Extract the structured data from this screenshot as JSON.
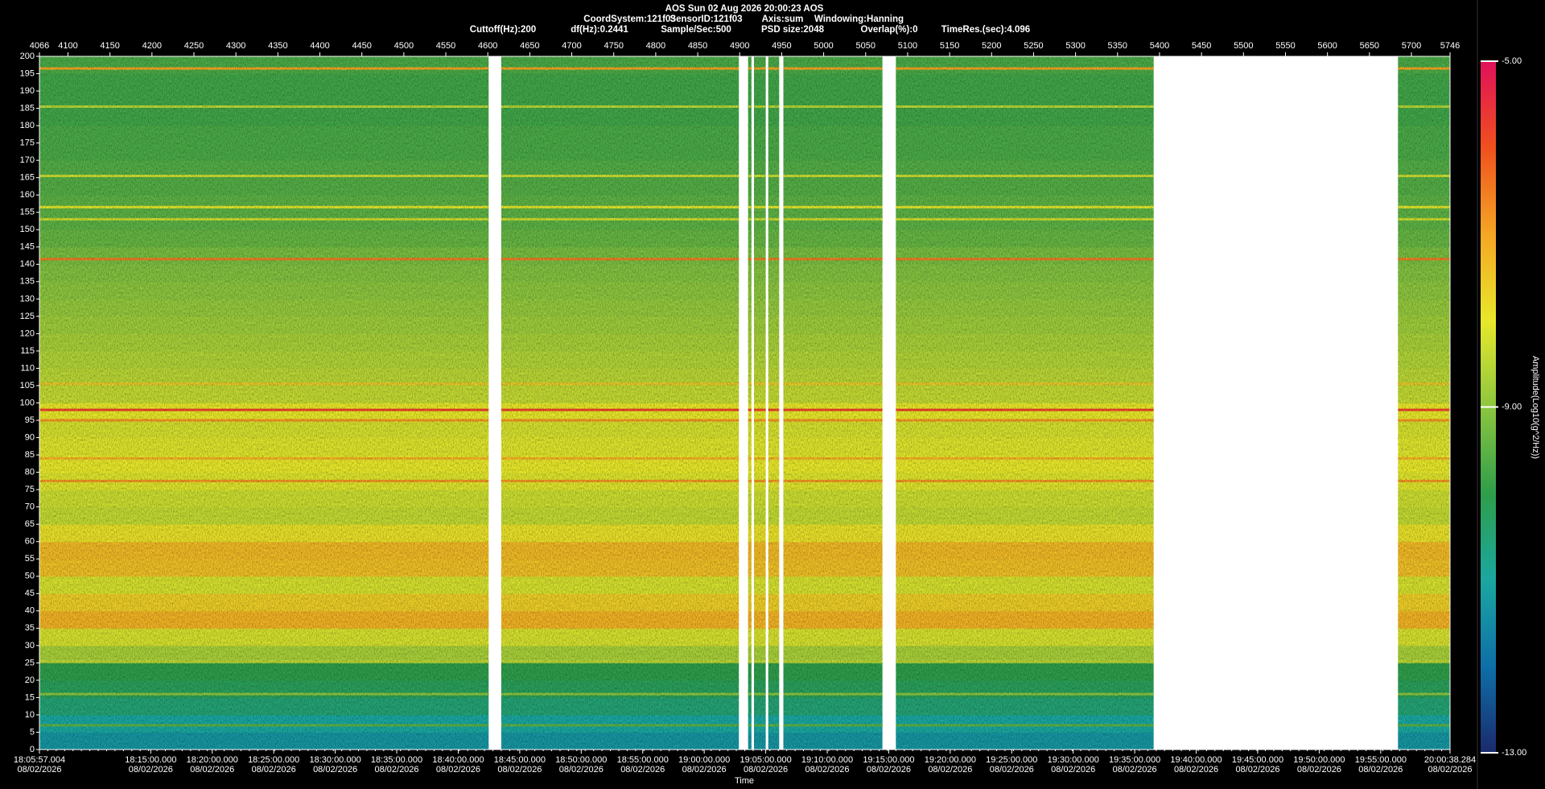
{
  "chart_data": {
    "type": "spectrogram",
    "title": "AOS  Sun 02 Aug 2026 20:00:23  AOS",
    "subtitle": [
      "CoordSystem:121f03",
      "SensorID:121f03",
      "Axis:sum",
      "Windowing:Hanning"
    ],
    "parameters": [
      "Cuttoff(Hz):200",
      "df(Hz):0.2441",
      "Sample/Sec:500",
      "PSD size:2048",
      "Overlap(%):0",
      "TimeRes.(sec):4.096"
    ],
    "xlabel": "Time",
    "colorbar_label": "Amplitude(Log10(g^2/Hz))",
    "xlim": [
      4066,
      5746
    ],
    "xticks": [
      4066,
      4100,
      4150,
      4200,
      4250,
      4300,
      4350,
      4400,
      4450,
      4500,
      4550,
      4600,
      4650,
      4700,
      4750,
      4800,
      4850,
      4900,
      4950,
      5000,
      5050,
      5100,
      5150,
      5200,
      5250,
      5300,
      5350,
      5400,
      5450,
      5500,
      5550,
      5600,
      5650,
      5700,
      5746
    ],
    "time_ticks": [
      {
        "value": 4066,
        "label": "18:05:57.004",
        "date": "08/02/2026"
      },
      {
        "value": 4198.57,
        "label": "18:15:00.000",
        "date": "08/02/2026"
      },
      {
        "value": 4271.82,
        "label": "18:20:00.000",
        "date": "08/02/2026"
      },
      {
        "value": 4345.06,
        "label": "18:25:00.000",
        "date": "08/02/2026"
      },
      {
        "value": 4418.3,
        "label": "18:30:00.000",
        "date": "08/02/2026"
      },
      {
        "value": 4491.54,
        "label": "18:35:00.000",
        "date": "08/02/2026"
      },
      {
        "value": 4564.79,
        "label": "18:40:00.000",
        "date": "08/02/2026"
      },
      {
        "value": 4638.03,
        "label": "18:45:00.000",
        "date": "08/02/2026"
      },
      {
        "value": 4711.27,
        "label": "18:50:00.000",
        "date": "08/02/2026"
      },
      {
        "value": 4784.51,
        "label": "18:55:00.000",
        "date": "08/02/2026"
      },
      {
        "value": 4857.75,
        "label": "19:00:00.000",
        "date": "08/02/2026"
      },
      {
        "value": 4931.0,
        "label": "19:05:00.000",
        "date": "08/02/2026"
      },
      {
        "value": 5004.24,
        "label": "19:10:00.000",
        "date": "08/02/2026"
      },
      {
        "value": 5077.48,
        "label": "19:15:00.000",
        "date": "08/02/2026"
      },
      {
        "value": 5150.72,
        "label": "19:20:00.000",
        "date": "08/02/2026"
      },
      {
        "value": 5223.97,
        "label": "19:25:00.000",
        "date": "08/02/2026"
      },
      {
        "value": 5297.21,
        "label": "19:30:00.000",
        "date": "08/02/2026"
      },
      {
        "value": 5370.45,
        "label": "19:35:00.000",
        "date": "08/02/2026"
      },
      {
        "value": 5443.69,
        "label": "19:40:00.000",
        "date": "08/02/2026"
      },
      {
        "value": 5516.93,
        "label": "19:45:00.000",
        "date": "08/02/2026"
      },
      {
        "value": 5590.18,
        "label": "19:50:00.000",
        "date": "08/02/2026"
      },
      {
        "value": 5663.42,
        "label": "19:55:00.000",
        "date": "08/02/2026"
      },
      {
        "value": 5746,
        "label": "20:00:38.284",
        "date": "08/02/2026"
      }
    ],
    "ylim": [
      0,
      200
    ],
    "yticks": [
      0,
      5,
      10,
      15,
      20,
      25,
      30,
      35,
      40,
      45,
      50,
      55,
      60,
      65,
      70,
      75,
      80,
      85,
      90,
      95,
      100,
      105,
      110,
      115,
      120,
      125,
      130,
      135,
      140,
      145,
      150,
      155,
      160,
      165,
      170,
      175,
      180,
      185,
      190,
      195,
      200
    ],
    "clim": [
      -13,
      -5
    ],
    "cticks": [
      {
        "value": -5,
        "label": "-5.00"
      },
      {
        "value": -9,
        "label": "-9.00"
      },
      {
        "value": -13,
        "label": "-13.00"
      }
    ],
    "colormap": [
      "#1a2a6c",
      "#0e6fa8",
      "#1aa7a0",
      "#2e9e4a",
      "#8cc63f",
      "#e8e82a",
      "#f5a623",
      "#f0501e",
      "#e0105a"
    ],
    "segments": [
      [
        4066,
        4601
      ],
      [
        4616,
        4899
      ],
      [
        4910,
        4914
      ],
      [
        4917,
        4931
      ],
      [
        4934,
        4947
      ],
      [
        4952,
        5070
      ],
      [
        5086,
        5393
      ],
      [
        5684,
        5746
      ]
    ],
    "bin_width": 5,
    "bins": [
      0,
      5,
      10,
      15,
      20,
      25,
      30,
      35,
      40,
      45,
      50,
      55,
      60,
      65,
      70,
      75,
      80,
      85,
      90,
      95,
      100,
      105,
      110,
      115,
      120,
      125,
      130,
      135,
      140,
      145,
      150,
      155,
      160,
      165,
      170,
      175,
      180,
      185,
      190,
      195
    ],
    "amplitude": [
      -11.3,
      -11.0,
      -10.5,
      -10.2,
      -10.0,
      -8.7,
      -8.2,
      -7.2,
      -7.6,
      -8.2,
      -7.4,
      -7.3,
      -7.9,
      -8.4,
      -8.3,
      -8.1,
      -8.0,
      -8.1,
      -8.2,
      -8.0,
      -8.4,
      -8.5,
      -8.6,
      -8.7,
      -8.8,
      -8.9,
      -9.0,
      -9.1,
      -9.2,
      -9.4,
      -9.5,
      -9.5,
      -9.6,
      -9.6,
      -9.7,
      -9.7,
      -9.8,
      -9.8,
      -9.8,
      -9.7
    ],
    "lines": {
      "freq": [
        196.5,
        185.5,
        165.5,
        156.5,
        153,
        141.5,
        105.5,
        98,
        95,
        84,
        77.5,
        25.5,
        16,
        7
      ],
      "amplitude": [
        -7.0,
        -8.5,
        -8.3,
        -8.0,
        -8.3,
        -6.5,
        -7.5,
        -5.8,
        -6.8,
        -7.2,
        -6.8,
        -8.5,
        -9.0,
        -9.5
      ]
    }
  }
}
